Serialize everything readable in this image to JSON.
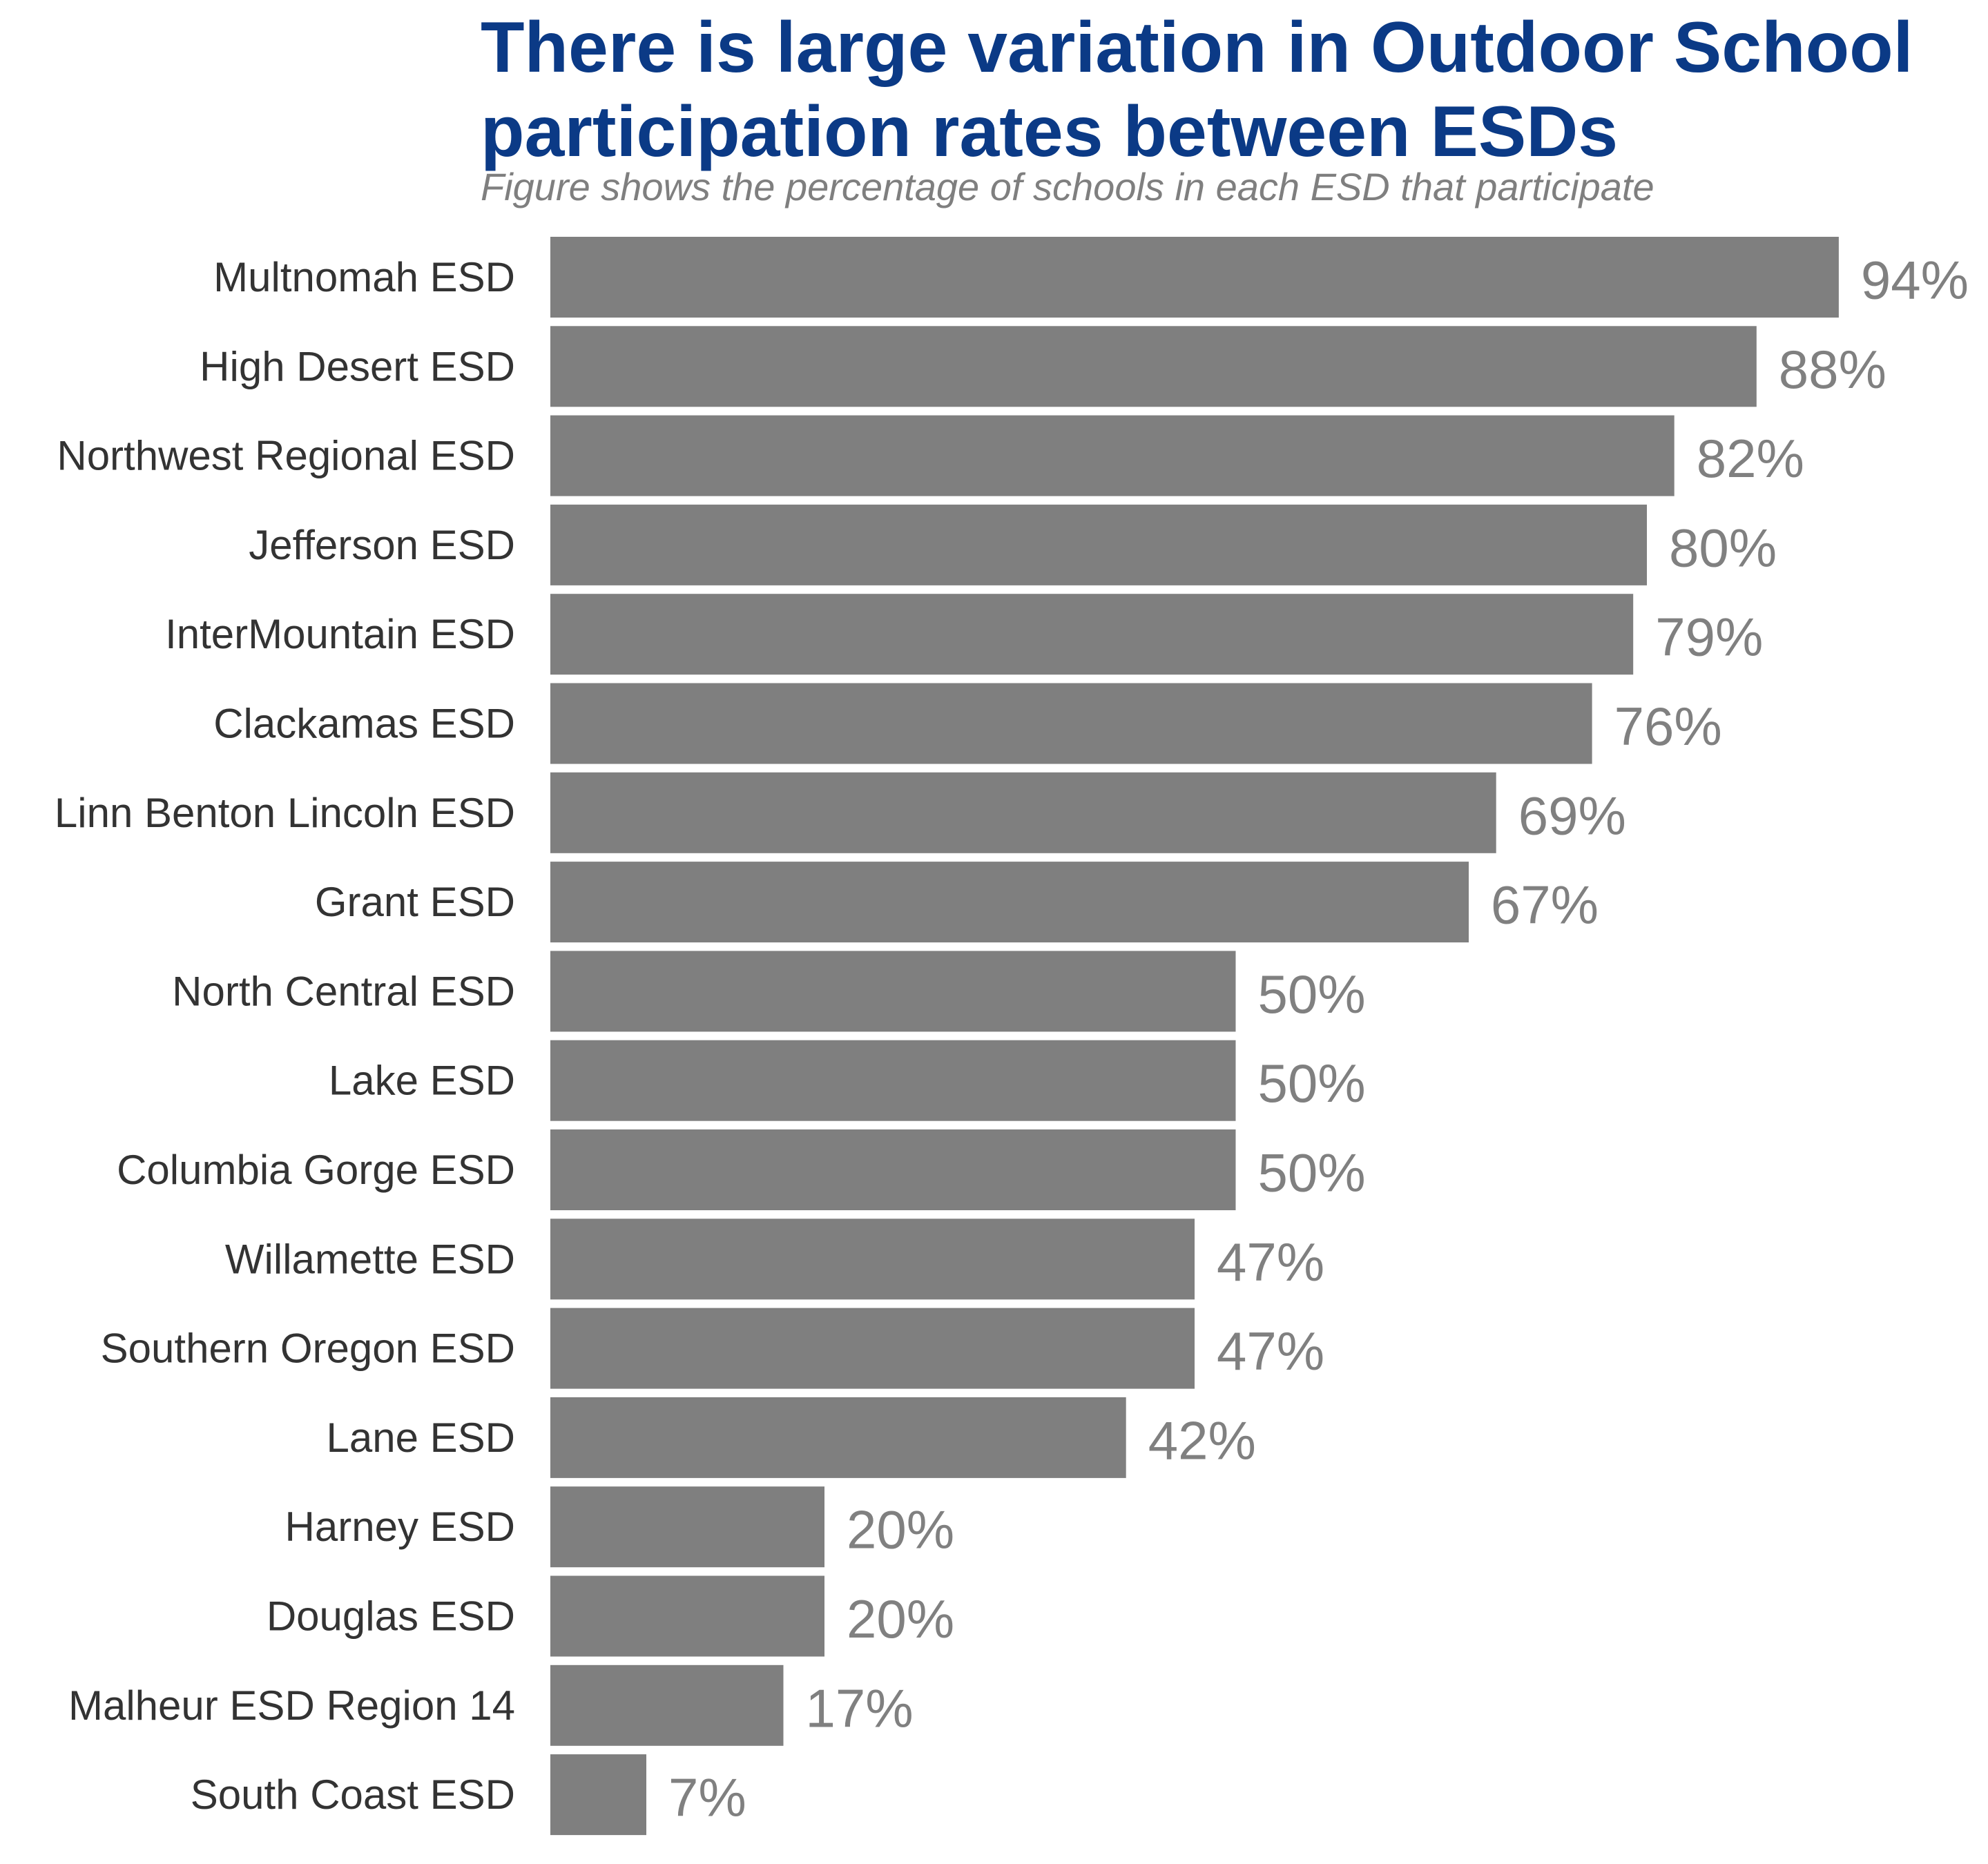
{
  "chart_data": {
    "type": "bar",
    "orientation": "horizontal",
    "title": "There is large variation in Outdoor School participation rates between ESDs",
    "subtitle": "Figure shows the percentage of schools in each ESD that participate",
    "xlabel": "",
    "ylabel": "",
    "xlim": [
      0,
      100
    ],
    "grid": false,
    "legend": "none",
    "value_suffix": "%",
    "categories": [
      "Multnomah ESD",
      "High Desert ESD",
      "Northwest Regional ESD",
      "Jefferson ESD",
      "InterMountain ESD",
      "Clackamas ESD",
      "Linn Benton Lincoln ESD",
      "Grant ESD",
      "North Central ESD",
      "Lake ESD",
      "Columbia Gorge ESD",
      "Willamette ESD",
      "Southern Oregon ESD",
      "Lane ESD",
      "Harney ESD",
      "Douglas ESD",
      "Malheur ESD Region 14",
      "South Coast ESD"
    ],
    "values": [
      94,
      88,
      82,
      80,
      79,
      76,
      69,
      67,
      50,
      50,
      50,
      47,
      47,
      42,
      20,
      20,
      17,
      7
    ],
    "value_labels": [
      "94%",
      "88%",
      "82%",
      "80%",
      "79%",
      "76%",
      "69%",
      "67%",
      "50%",
      "50%",
      "50%",
      "47%",
      "47%",
      "42%",
      "20%",
      "20%",
      "17%",
      "7%"
    ],
    "bar_color": "#7f7f7f",
    "title_color": "#0b3a86",
    "subtitle_color": "#7f7f7f",
    "label_color": "#333333",
    "value_label_color": "#808080"
  }
}
